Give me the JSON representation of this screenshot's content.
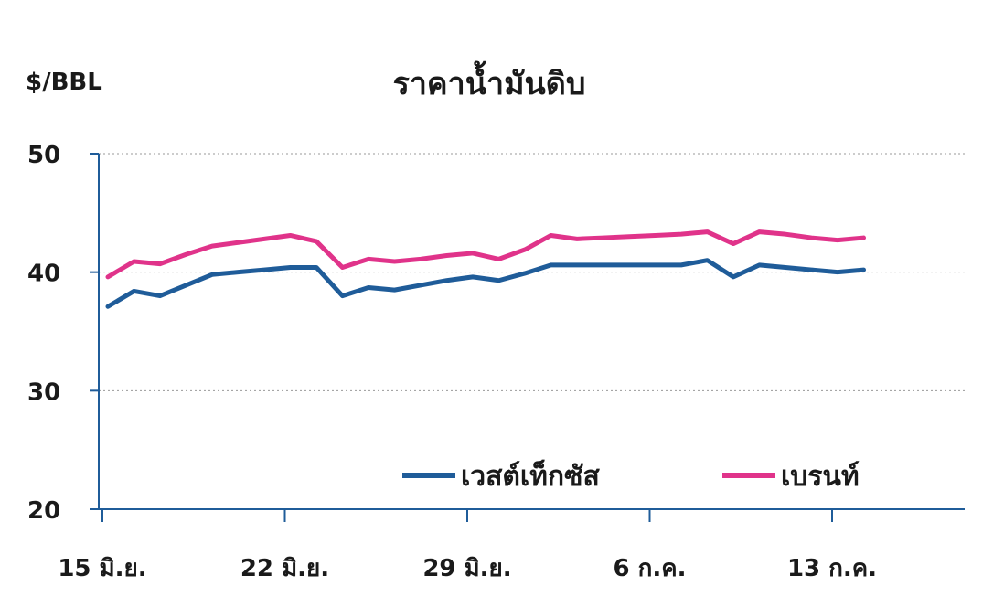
{
  "chart_data": {
    "type": "line",
    "title": "ราคาน้ำมันดิบ",
    "ylabel": "$/BBL",
    "xlabel": "",
    "ylim": [
      20,
      50
    ],
    "yticks": [
      20,
      30,
      40,
      50
    ],
    "gridlines": "horizontal-dotted",
    "legend_position": "bottom-right-inside",
    "x": [
      "15 มิ.ย.",
      "16 มิ.ย.",
      "17 มิ.ย.",
      "18 มิ.ย.",
      "19 มิ.ย.",
      "20 มิ.ย.",
      "21 มิ.ย.",
      "22 มิ.ย.",
      "23 มิ.ย.",
      "24 มิ.ย.",
      "25 มิ.ย.",
      "26 มิ.ย.",
      "27 มิ.ย.",
      "28 มิ.ย.",
      "29 มิ.ย.",
      "30 มิ.ย.",
      "1 ก.ค.",
      "2 ก.ค.",
      "3 ก.ค.",
      "4 ก.ค.",
      "5 ก.ค.",
      "6 ก.ค.",
      "7 ก.ค.",
      "8 ก.ค.",
      "9 ก.ค.",
      "10 ก.ค.",
      "11 ก.ค.",
      "12 ก.ค.",
      "13 ก.ค.",
      "14 ก.ค."
    ],
    "x_tick_labels": [
      "15 มิ.ย.",
      "22 มิ.ย.",
      "29 มิ.ย.",
      "6 ก.ค.",
      "13 ก.ค."
    ],
    "series": [
      {
        "name": "เวสต์เท็กซัส",
        "color": "#1f5c99",
        "values": [
          37.1,
          38.4,
          38.0,
          38.9,
          39.8,
          40.0,
          40.2,
          40.4,
          40.4,
          38.0,
          38.7,
          38.5,
          38.9,
          39.3,
          39.6,
          39.3,
          39.9,
          40.6,
          40.6,
          40.6,
          40.6,
          40.6,
          40.6,
          41.0,
          39.6,
          40.6,
          40.4,
          40.2,
          40.0,
          40.2
        ]
      },
      {
        "name": "เบรนท์",
        "color": "#e0338a",
        "values": [
          39.6,
          40.9,
          40.7,
          41.5,
          42.2,
          42.5,
          42.8,
          43.1,
          42.6,
          40.4,
          41.1,
          40.9,
          41.1,
          41.4,
          41.6,
          41.1,
          41.9,
          43.1,
          42.8,
          42.9,
          43.0,
          43.1,
          43.2,
          43.4,
          42.4,
          43.4,
          43.2,
          42.9,
          42.7,
          42.9
        ]
      }
    ]
  }
}
